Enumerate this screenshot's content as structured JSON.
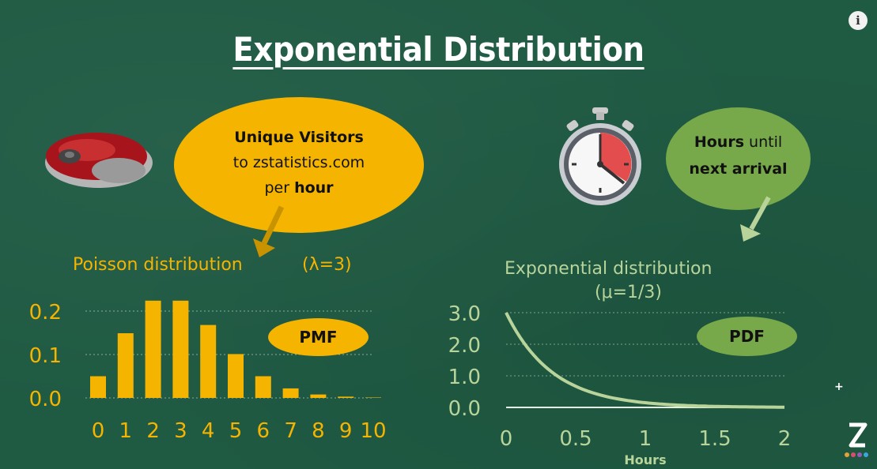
{
  "title": "Exponential Distribution",
  "info_icon": "info-icon",
  "poisson_bubble": {
    "line1": "Unique Visitors",
    "line2": "to zstatistics.com",
    "line3_prefix": "per ",
    "line3_bold": "hour",
    "color": "#f4b400"
  },
  "exponential_bubble": {
    "line1_bold": "Hours",
    "line1_rest": " until",
    "line2_bold": "next arrival",
    "color": "#77a84a"
  },
  "icons": {
    "mouse": "computer-mouse-icon",
    "stopwatch": "stopwatch-icon",
    "logo": "zstatistics-logo",
    "plus": "plus-icon"
  },
  "poisson_label": "Poisson distribution",
  "poisson_param": "(λ=3)",
  "pmf_label": "PMF",
  "exp_label": "Exponential distribution",
  "exp_param": "(μ=1/3)",
  "pdf_label": "PDF",
  "plus_glyph": "+",
  "chart_data": [
    {
      "type": "bar",
      "categories": [
        "0",
        "1",
        "2",
        "3",
        "4",
        "5",
        "6",
        "7",
        "8",
        "9",
        "10"
      ],
      "values": [
        0.05,
        0.149,
        0.224,
        0.224,
        0.168,
        0.101,
        0.05,
        0.022,
        0.008,
        0.003,
        0.001
      ],
      "yticks": [
        "0.2",
        "0.1",
        "0.0"
      ],
      "ytick_values": [
        0.2,
        0.1,
        0.0
      ],
      "ylim": [
        0,
        0.24
      ],
      "grid": true,
      "bar_color": "#f4b400",
      "xlabel": "",
      "ylabel": ""
    },
    {
      "type": "line",
      "x": [
        0,
        0.1,
        0.2,
        0.3,
        0.4,
        0.5,
        0.6,
        0.8,
        1.0,
        1.2,
        1.5,
        1.8,
        2.0
      ],
      "y": [
        3.0,
        2.222,
        1.646,
        1.22,
        0.904,
        0.669,
        0.496,
        0.272,
        0.149,
        0.082,
        0.033,
        0.014,
        0.007
      ],
      "xticks": [
        "0",
        "0.5",
        "1",
        "1.5",
        "2"
      ],
      "xtick_values": [
        0,
        0.5,
        1,
        1.5,
        2
      ],
      "yticks": [
        "3.0",
        "2.0",
        "1.0",
        "0.0"
      ],
      "ytick_values": [
        3,
        2,
        1,
        0
      ],
      "xlim": [
        0,
        2
      ],
      "ylim": [
        0,
        3
      ],
      "xlabel": "Hours",
      "ylabel": "",
      "grid": true,
      "line_color": "#b8d49a"
    }
  ]
}
